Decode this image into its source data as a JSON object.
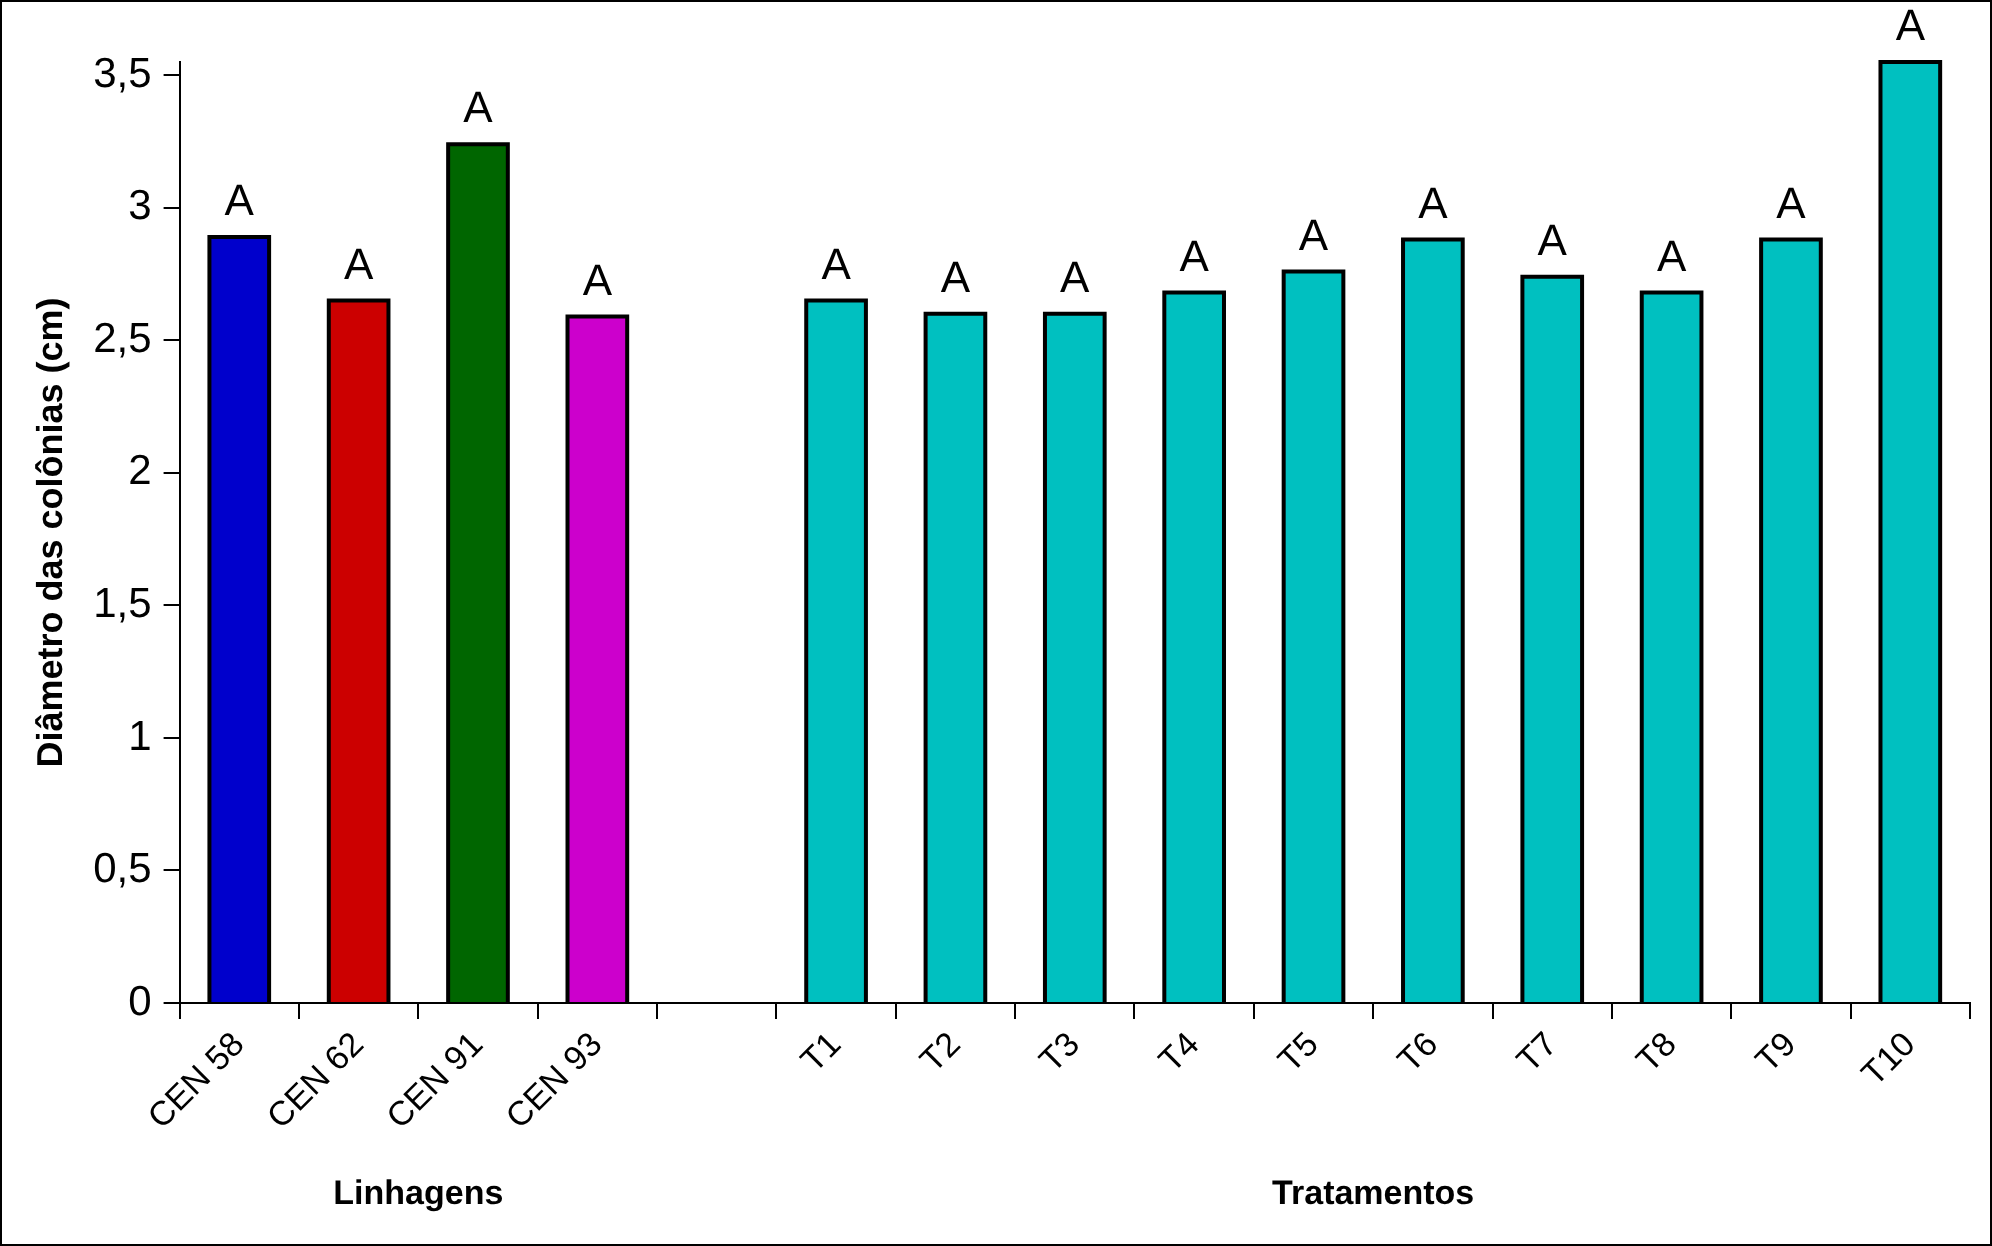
{
  "chart_data": {
    "type": "bar",
    "ylabel": "Diâmetro das colônias (cm)",
    "categories": [
      "CEN 58",
      "CEN 62",
      "CEN 91",
      "CEN 93",
      null,
      "T1",
      "T2",
      "T3",
      "T4",
      "T5",
      "T6",
      "T7",
      "T8",
      "T9",
      "T10"
    ],
    "values": [
      2.89,
      2.65,
      3.24,
      2.59,
      null,
      2.65,
      2.6,
      2.6,
      2.68,
      2.76,
      2.88,
      2.74,
      2.68,
      2.88,
      3.55
    ],
    "colors": [
      "#0000cc",
      "#cc0000",
      "#006600",
      "#cc00cc",
      "#00c0c0",
      "#00c0c0",
      "#00c0c0",
      "#00c0c0",
      "#00c0c0",
      "#00c0c0",
      "#00c0c0",
      "#00c0c0",
      "#00c0c0",
      "#00c0c0",
      "#00c0c0"
    ],
    "value_labels": [
      "A",
      "A",
      "A",
      "A",
      null,
      "A",
      "A",
      "A",
      "A",
      "A",
      "A",
      "A",
      "A",
      "A",
      "A"
    ],
    "annotations": [
      "Linhagens",
      "Tratamentos"
    ],
    "ylim": [
      0,
      3.55
    ],
    "yticks": [
      0,
      {
        "value": 0.5,
        "label": "0,5"
      },
      1,
      {
        "value": 1.5,
        "label": "1,5"
      },
      2,
      {
        "value": 2.5,
        "label": "2,5"
      },
      3,
      {
        "value": 3.5,
        "label": "3,5"
      }
    ],
    "grid": false,
    "legend": false
  }
}
